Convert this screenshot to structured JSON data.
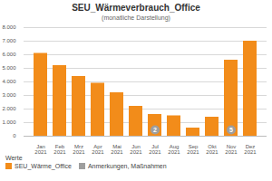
{
  "chart_data": {
    "type": "bar",
    "title": "SEU_Wärmeverbrauch_Office",
    "subtitle": "(monatliche Darstellung)",
    "categories": [
      "Jan 2021",
      "Feb 2021",
      "Mrz 2021",
      "Apr 2021",
      "Mai 2021",
      "Jun 2021",
      "Jul 2021",
      "Aug 2021",
      "Sep 2021",
      "Okt 2021",
      "Nov 2021",
      "Dez 2021"
    ],
    "series": [
      {
        "name": "SEU_Wärme_Office",
        "color": "#f28c1a",
        "values": [
          6100,
          5200,
          4400,
          3900,
          3200,
          2200,
          1600,
          1500,
          600,
          1400,
          5600,
          7000
        ]
      }
    ],
    "annotations": [
      {
        "category": "Jul 2021",
        "label": "2"
      },
      {
        "category": "Nov 2021",
        "label": "5"
      }
    ],
    "annotation_legend": {
      "label": "Anmerkungen, Maßnahmen",
      "color": "#9e9e9e"
    },
    "legend_title": "Werte",
    "legend": "bottom",
    "ylim": [
      0,
      8000
    ],
    "yticks": [
      0,
      {
        "value": 1000,
        "label": "1.000"
      },
      {
        "value": 2000,
        "label": "2.000"
      },
      {
        "value": 3000,
        "label": "3.000"
      },
      {
        "value": 4000,
        "label": "4.000"
      },
      {
        "value": 5000,
        "label": "5.000"
      },
      {
        "value": 6000,
        "label": "6.000"
      },
      {
        "value": 7000,
        "label": "7.000"
      },
      {
        "value": 8000,
        "label": "8.000"
      }
    ],
    "grid": true
  }
}
